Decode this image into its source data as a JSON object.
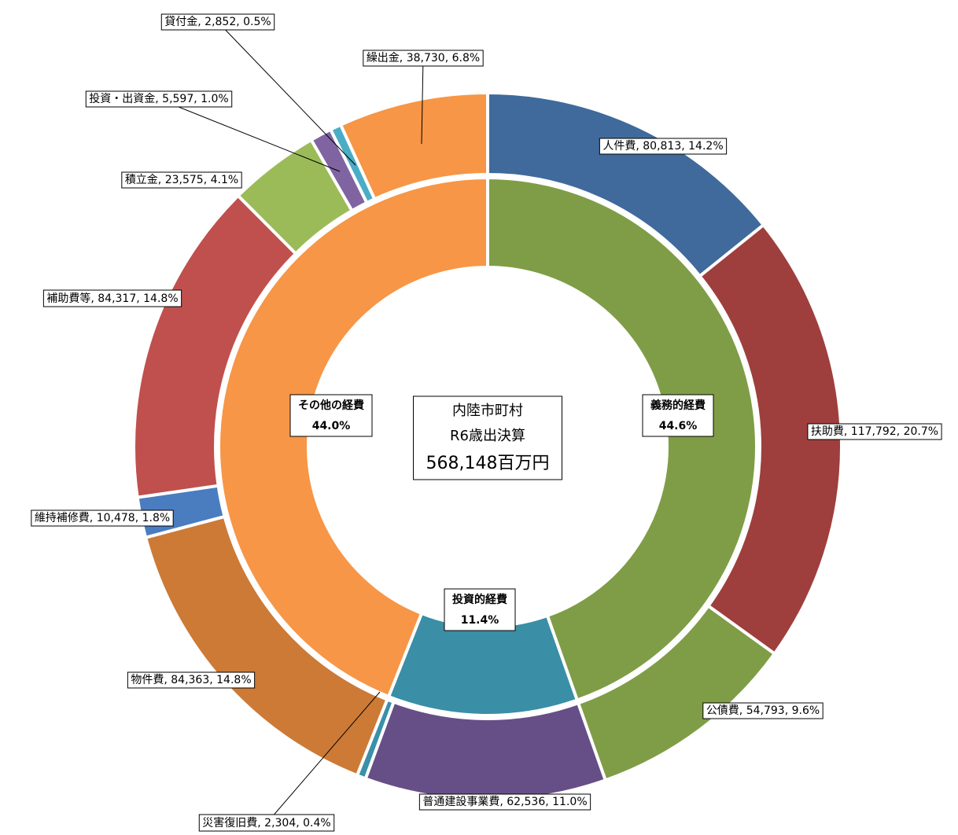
{
  "chart_data": {
    "type": "nested-donut",
    "center_text": [
      "内陸市町村",
      "R6歳出決算",
      "568,148百万円"
    ],
    "inner": {
      "categories": [
        "義務的経費",
        "投資的経費",
        "その他の経費"
      ],
      "values": [
        44.6,
        11.4,
        44.0
      ],
      "value_labels": [
        "44.6%",
        "11.4%",
        "44.0%"
      ],
      "colors": [
        "#7f9d46",
        "#3a8ea6",
        "#f79646"
      ]
    },
    "outer": {
      "values": [
        80813,
        117792,
        54793,
        62536,
        2304,
        84363,
        10478,
        84317,
        23575,
        5597,
        2852,
        38730
      ],
      "value_labels": [
        "人件費, 80,813, 14.2%",
        "扶助費, 117,792, 20.7%",
        "公債費, 54,793, 9.6%",
        "普通建設事業費, 62,536, 11.0%",
        "災害復旧費, 2,304, 0.4%",
        "物件費, 84,363, 14.8%",
        "維持補修費, 10,478, 1.8%",
        "補助費等, 84,317, 14.8%",
        "積立金, 23,575, 4.1%",
        "投資・出資金, 5,597, 1.0%",
        "貸付金, 2,852, 0.5%",
        "繰出金, 38,730, 6.8%"
      ],
      "colors": [
        "#3f6a9b",
        "#9e3f3d",
        "#7f9d46",
        "#664f86",
        "#3a90a8",
        "#cc7a36",
        "#4a7cc0",
        "#c0504d",
        "#9bbb59",
        "#8064a2",
        "#4bacc6",
        "#f79646"
      ]
    }
  }
}
